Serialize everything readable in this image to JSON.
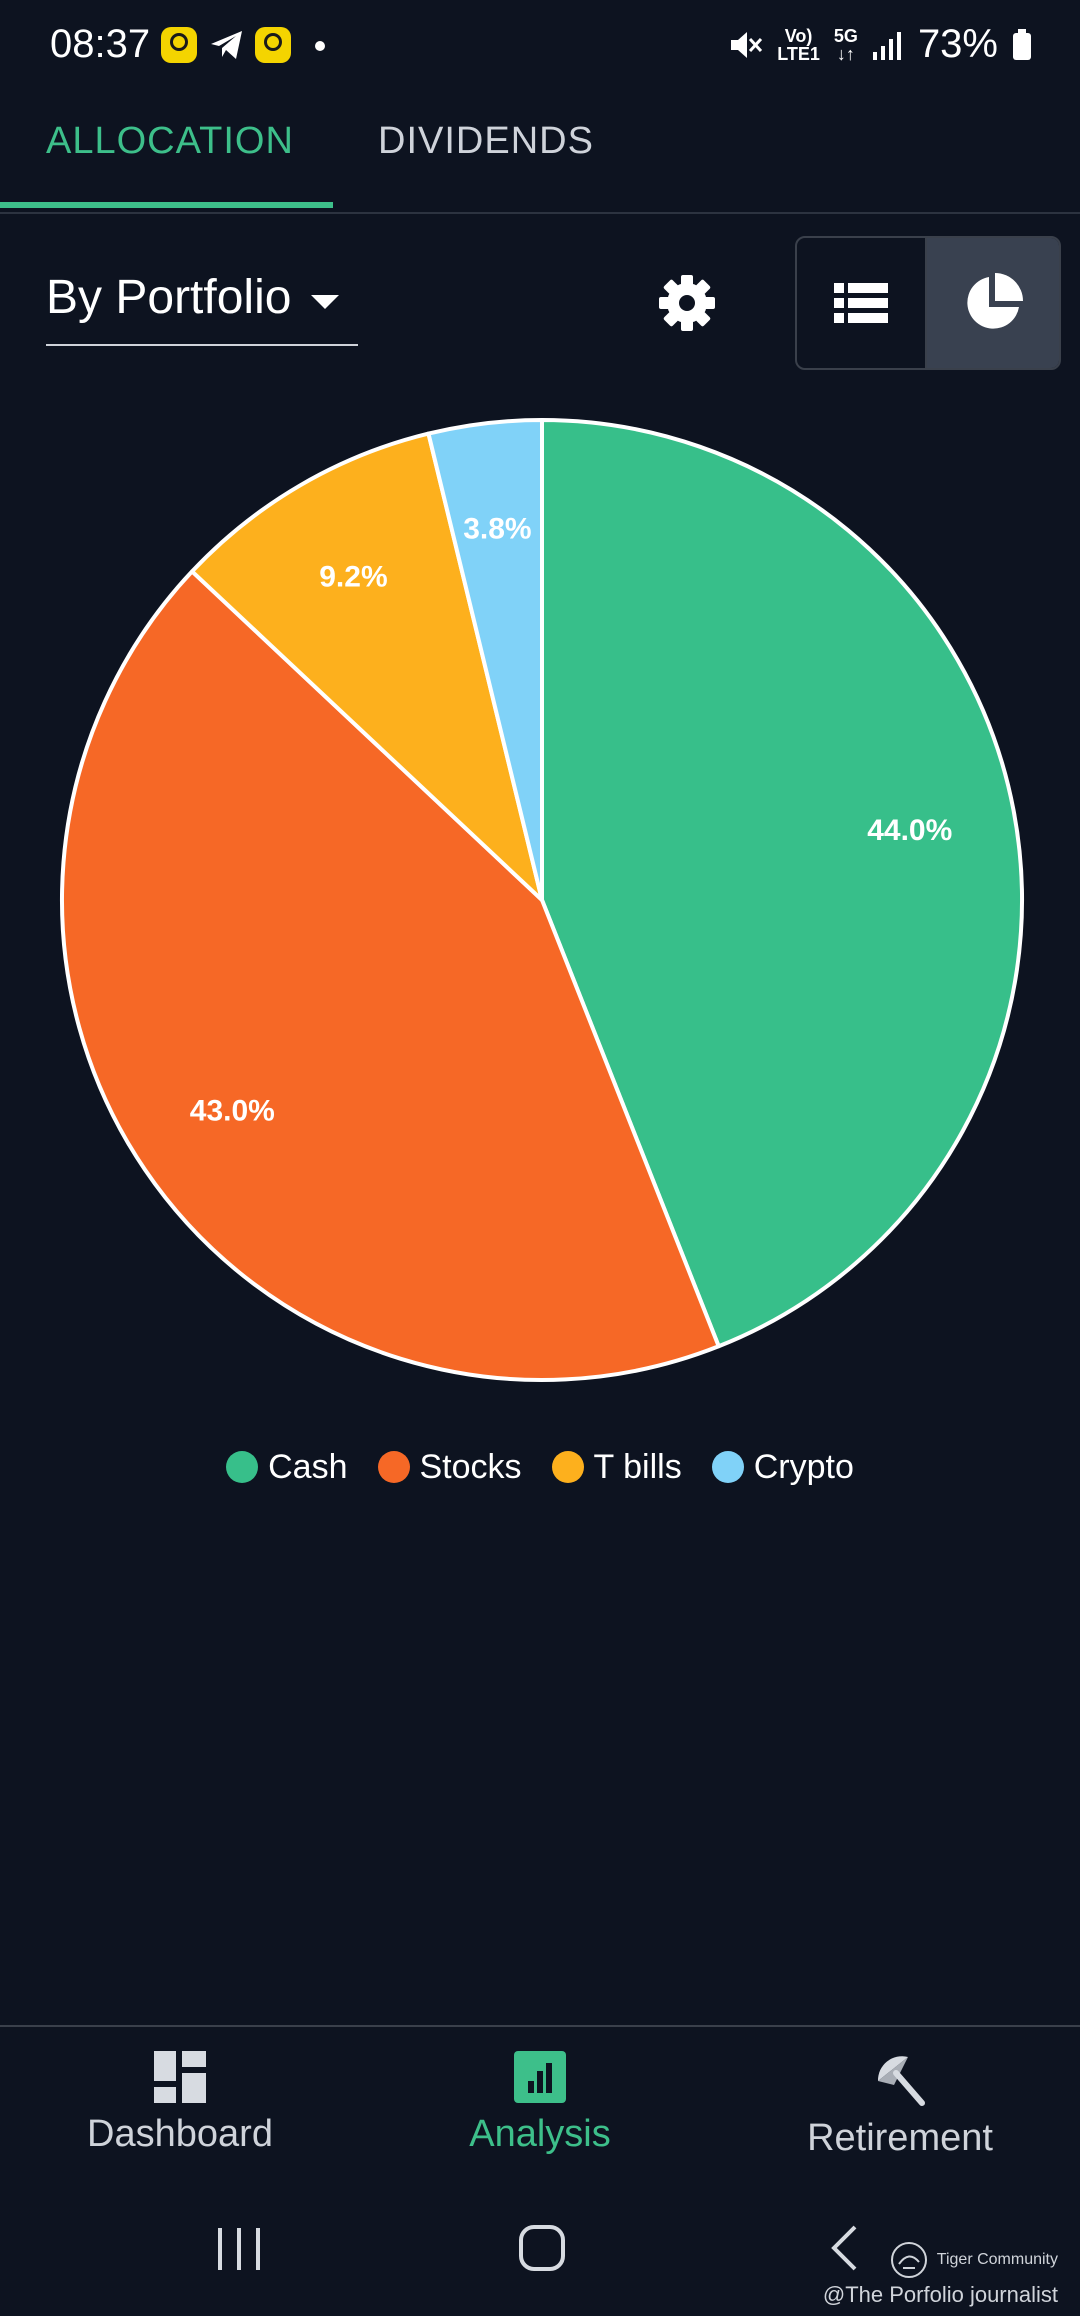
{
  "status_bar": {
    "time": "08:37",
    "battery": "73%",
    "network_top": "Vo)",
    "network_bottom": "LTE1",
    "five_g": "5G"
  },
  "tabs": [
    {
      "label": "ALLOCATION",
      "active": true
    },
    {
      "label": "DIVIDENDS",
      "active": false
    }
  ],
  "controls": {
    "portfolio_select": "By Portfolio",
    "active_view": "pie"
  },
  "chart_data": {
    "type": "pie",
    "slices": [
      {
        "label": "Cash",
        "value": 44.0,
        "display": "44.0%",
        "color": "#37bf8a"
      },
      {
        "label": "Stocks",
        "value": 43.0,
        "display": "43.0%",
        "color": "#f66826"
      },
      {
        "label": "T bills",
        "value": 9.2,
        "display": "9.2%",
        "color": "#fdb01d"
      },
      {
        "label": "Crypto",
        "value": 3.8,
        "display": "3.8%",
        "color": "#80d2f8"
      }
    ],
    "legend_placement": "bottom"
  },
  "bottom_nav": [
    {
      "label": "Dashboard",
      "icon": "dashboard-icon",
      "active": false
    },
    {
      "label": "Analysis",
      "icon": "analysis-icon",
      "active": true
    },
    {
      "label": "Retirement",
      "icon": "retirement-icon",
      "active": false
    }
  ],
  "watermark": {
    "community": "Tiger Community",
    "credit": "@The Porfolio journalist"
  },
  "colors": {
    "background": "#0d1320",
    "accent": "#3dbf8a"
  }
}
